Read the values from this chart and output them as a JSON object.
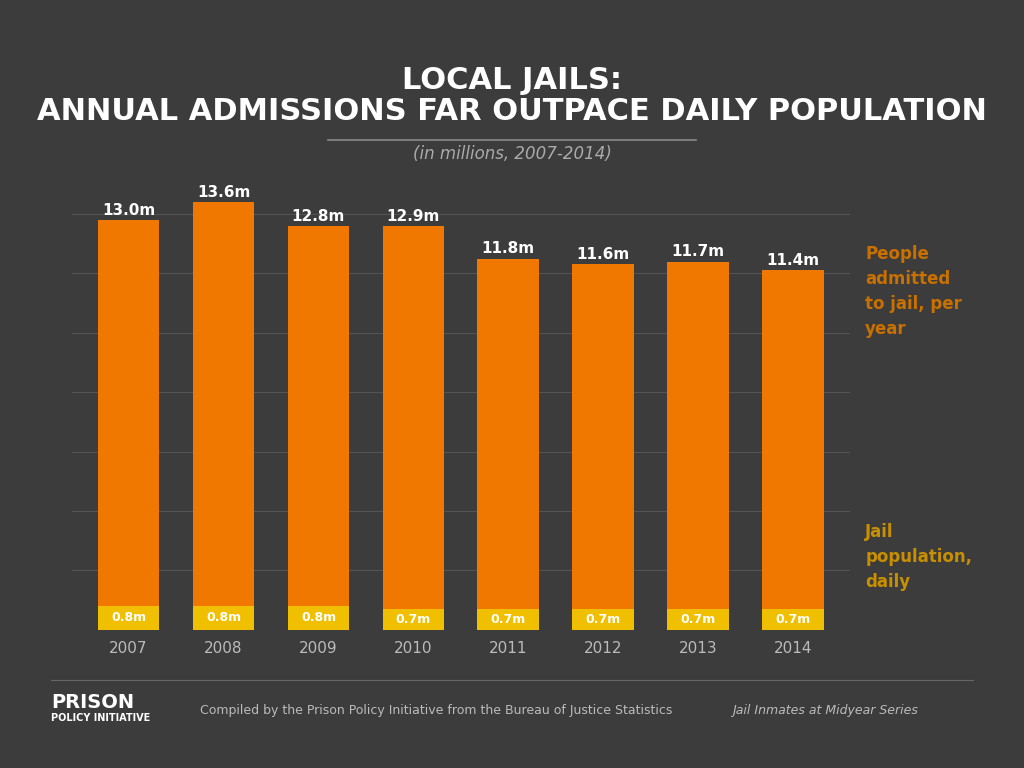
{
  "years": [
    "2007",
    "2008",
    "2009",
    "2010",
    "2011",
    "2012",
    "2013",
    "2014"
  ],
  "admissions": [
    13.0,
    13.6,
    12.8,
    12.9,
    11.8,
    11.6,
    11.7,
    11.4
  ],
  "daily_pop": [
    0.8,
    0.8,
    0.8,
    0.7,
    0.7,
    0.7,
    0.7,
    0.7
  ],
  "admissions_labels": [
    "13.0m",
    "13.6m",
    "12.8m",
    "12.9m",
    "11.8m",
    "11.6m",
    "11.7m",
    "11.4m"
  ],
  "daily_labels": [
    "0.8m",
    "0.8m",
    "0.8m",
    "0.7m",
    "0.7m",
    "0.7m",
    "0.7m",
    "0.7m"
  ],
  "bar_color_orange": "#F07800",
  "bar_color_yellow": "#F0C000",
  "bg_color": "#3C3C3C",
  "title_line1": "LOCAL JAILS:",
  "title_line2": "ANNUAL ADMISSIONS FAR OUTPACE DAILY POPULATION",
  "subtitle": "(in millions, 2007-2014)",
  "legend_label1": "People\nadmitted\nto jail, per\nyear",
  "legend_label2": "Jail\npopulation,\ndaily",
  "legend_color1": "#C87000",
  "legend_color2": "#C89000",
  "title_color": "#FFFFFF",
  "subtitle_color": "#AAAAAA",
  "tick_color": "#BBBBBB",
  "grid_color": "#555555",
  "footer_text_normal": "Compiled by the Prison Policy Initiative from the Bureau of Justice Statistics ",
  "footer_text_italic": "Jail Inmates at Midyear Series",
  "ylim_max": 15.0
}
